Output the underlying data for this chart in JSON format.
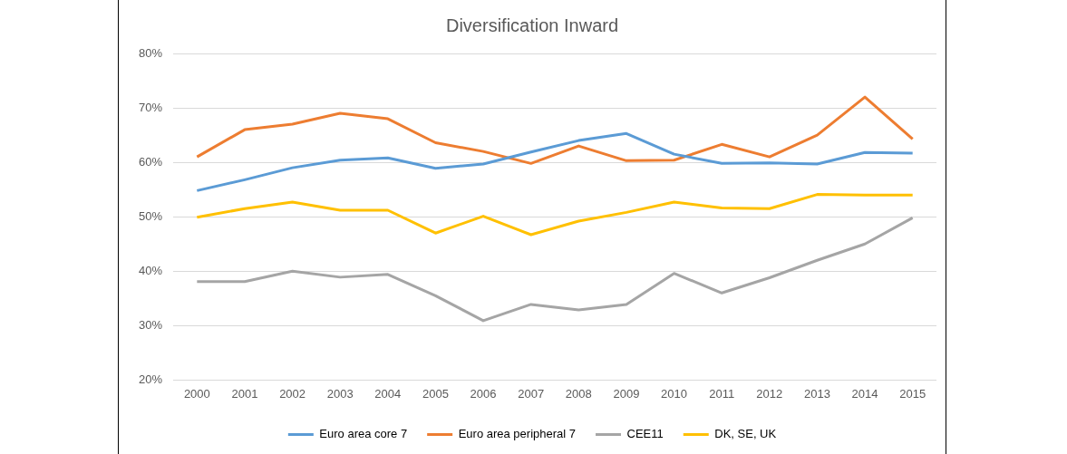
{
  "chart_data": {
    "type": "line",
    "title": "Diversification Inward",
    "categories": [
      "2000",
      "2001",
      "2002",
      "2003",
      "2004",
      "2005",
      "2006",
      "2007",
      "2008",
      "2009",
      "2010",
      "2011",
      "2012",
      "2013",
      "2014",
      "2015"
    ],
    "series": [
      {
        "name": "Euro area core 7",
        "color": "#5b9bd5",
        "values": [
          54.8,
          56.8,
          59,
          60.4,
          60.8,
          58.9,
          59.7,
          61.9,
          64,
          65.3,
          61.5,
          59.8,
          59.9,
          59.7,
          61.8,
          61.7
        ]
      },
      {
        "name": "Euro area peripheral 7",
        "color": "#ed7d31",
        "values": [
          61,
          66,
          67,
          69,
          68,
          63.6,
          62,
          59.8,
          63,
          60.3,
          60.4,
          63.3,
          61,
          65,
          72,
          64.3
        ]
      },
      {
        "name": "CEE11",
        "color": "#a5a5a5",
        "values": [
          38.1,
          38.1,
          40,
          38.9,
          39.4,
          35.5,
          30.9,
          33.9,
          32.9,
          33.9,
          39.6,
          36,
          38.8,
          42,
          45,
          49.8
        ]
      },
      {
        "name": "DK, SE, UK",
        "color": "#ffc000",
        "values": [
          49.9,
          51.5,
          52.7,
          51.2,
          51.2,
          47,
          50.1,
          46.7,
          49.2,
          50.8,
          52.7,
          51.6,
          51.5,
          54.1,
          54,
          54
        ]
      }
    ],
    "ylim": [
      20,
      80
    ],
    "yticks": [
      {
        "value": 20,
        "label": "20%"
      },
      {
        "value": 30,
        "label": "30%"
      },
      {
        "value": 40,
        "label": "40%"
      },
      {
        "value": 50,
        "label": "50%"
      },
      {
        "value": 60,
        "label": "60%"
      },
      {
        "value": 70,
        "label": "70%"
      },
      {
        "value": 80,
        "label": "80%"
      }
    ],
    "grid": "y",
    "legend": "bottom",
    "marker": "none",
    "line_style": "solid"
  }
}
